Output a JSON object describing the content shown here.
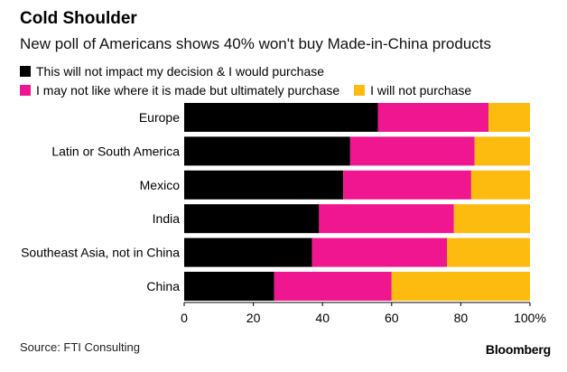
{
  "header": {
    "title": "Cold Shoulder",
    "subtitle": "New poll of Americans shows 40% won't buy Made-in-China products"
  },
  "footer": {
    "source": "Source: FTI Consulting",
    "brand": "Bloomberg"
  },
  "colors": {
    "series_1": "#000000",
    "series_2": "#f0168f",
    "series_3": "#fdbb0f"
  },
  "chart_data": {
    "type": "bar",
    "orientation": "horizontal",
    "stacked": true,
    "title": "Cold Shoulder",
    "subtitle": "New poll of Americans shows 40% won't buy Made-in-China products",
    "categories": [
      "Europe",
      "Latin or South America",
      "Mexico",
      "India",
      "Southeast Asia, not in China",
      "China"
    ],
    "series": [
      {
        "name": "This will not impact my decision & I would purchase",
        "color": "#000000",
        "values": [
          56,
          48,
          46,
          39,
          37,
          26
        ]
      },
      {
        "name": "I may not like where it is made but ultimately purchase",
        "color": "#f0168f",
        "values": [
          32,
          36,
          37,
          39,
          39,
          34
        ]
      },
      {
        "name": "I will not purchase",
        "color": "#fdbb0f",
        "values": [
          12,
          16,
          17,
          22,
          24,
          40
        ]
      }
    ],
    "xlim": [
      0,
      100
    ],
    "x_ticks": [
      "0",
      "20",
      "40",
      "60",
      "80",
      "100%"
    ],
    "grid": false,
    "legend_position": "top"
  }
}
